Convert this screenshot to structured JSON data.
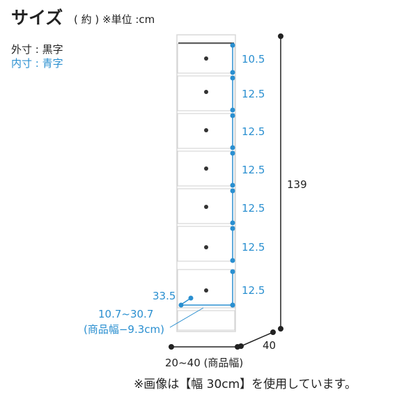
{
  "title": {
    "main": "サイズ",
    "sub": "( 約 ) ※単位 :cm"
  },
  "legend": {
    "outer": "外寸 : 黒字",
    "inner": "内寸 : 青字"
  },
  "dimensions": {
    "drawer_heights": [
      "10.5",
      "12.5",
      "12.5",
      "12.5",
      "12.5",
      "12.5",
      "12.5"
    ],
    "total_height": "139",
    "depth": "40",
    "width": "20~40 (商品幅)",
    "inner_depth": "33.5",
    "inner_width_line1": "10.7~30.7",
    "inner_width_line2": "(商品幅−9.3cm)"
  },
  "footnote": "※画像は【幅 30cm】を使用しています。",
  "colors": {
    "inner": "#2a8fd0",
    "outer": "#222222"
  }
}
